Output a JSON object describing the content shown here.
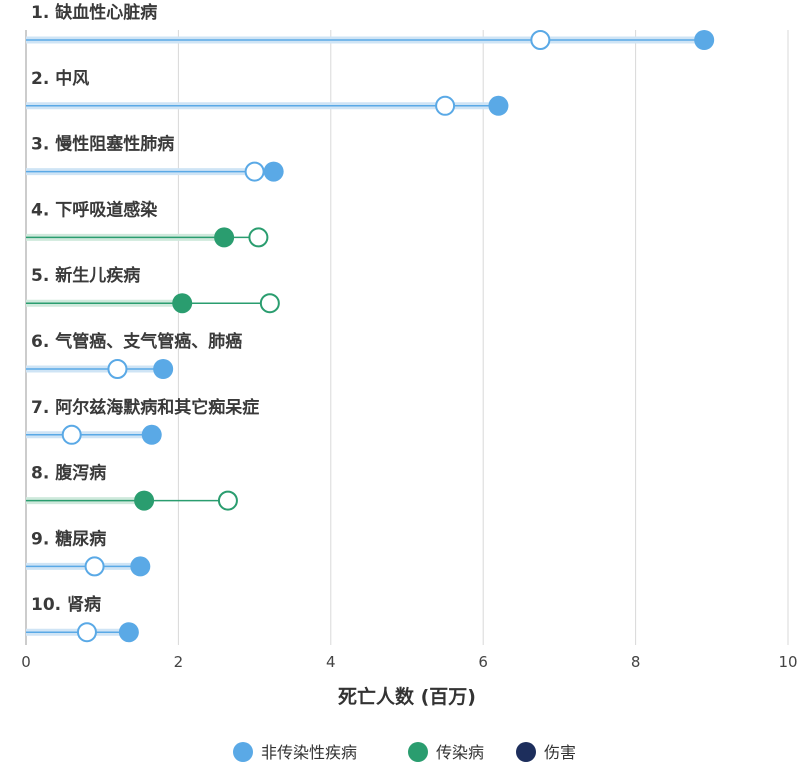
{
  "chart_data": {
    "type": "dumbbell",
    "xlabel": "死亡人数 (百万)",
    "xlim": [
      0,
      10
    ],
    "xticks": [
      0,
      2,
      4,
      6,
      8,
      10
    ],
    "grid": true,
    "legend_position": "bottom",
    "groups": [
      {
        "name": "非传染性疾病",
        "color": "#5aa9e6"
      },
      {
        "name": "传染病",
        "color": "#2a9d6f"
      },
      {
        "name": "伤害",
        "color": "#1d2e5c"
      }
    ],
    "categories": [
      {
        "label": "1. 缺血性心脏病",
        "group": "非传染性疾病",
        "filled": 8.9,
        "open": 6.75
      },
      {
        "label": "2. 中风",
        "group": "非传染性疾病",
        "filled": 6.2,
        "open": 5.5
      },
      {
        "label": "3. 慢性阻塞性肺病",
        "group": "非传染性疾病",
        "filled": 3.25,
        "open": 3.0
      },
      {
        "label": "4. 下呼吸道感染",
        "group": "传染病",
        "filled": 2.6,
        "open": 3.05
      },
      {
        "label": "5. 新生儿疾病",
        "group": "传染病",
        "filled": 2.05,
        "open": 3.2
      },
      {
        "label": "6. 气管癌、支气管癌、肺癌",
        "group": "非传染性疾病",
        "filled": 1.8,
        "open": 1.2
      },
      {
        "label": "7. 阿尔兹海默病和其它痴呆症",
        "group": "非传染性疾病",
        "filled": 1.65,
        "open": 0.6
      },
      {
        "label": "8. 腹泻病",
        "group": "传染病",
        "filled": 1.55,
        "open": 2.65
      },
      {
        "label": "9. 糖尿病",
        "group": "非传染性疾病",
        "filled": 1.5,
        "open": 0.9
      },
      {
        "label": "10. 肾病",
        "group": "非传染性疾病",
        "filled": 1.35,
        "open": 0.8
      }
    ]
  }
}
